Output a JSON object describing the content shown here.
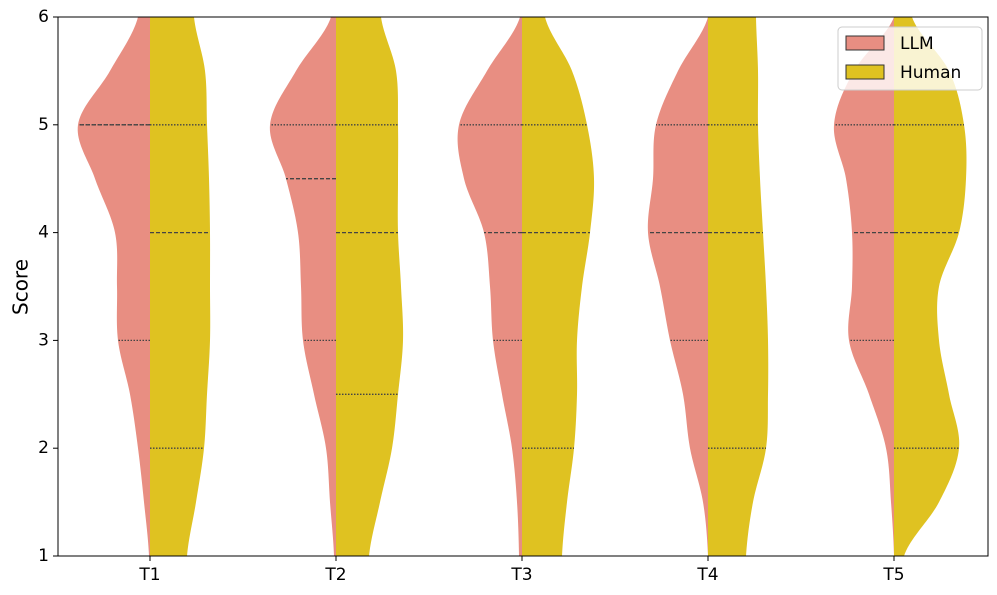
{
  "chart_data": {
    "type": "split-violin",
    "ylabel": "Score",
    "categories": [
      "T1",
      "T2",
      "T3",
      "T4",
      "T5"
    ],
    "ylim": [
      1,
      6
    ],
    "yticks": [
      1,
      2,
      3,
      4,
      5,
      6
    ],
    "legend": "upper right",
    "density_y": [
      1,
      1.5,
      2,
      2.5,
      3,
      3.5,
      4,
      4.5,
      5,
      5.5,
      6
    ],
    "series": [
      {
        "name": "LLM",
        "color": "#e88e82",
        "side": "left",
        "quartiles": [
          [
            3,
            5,
            5
          ],
          [
            3,
            4.5,
            5
          ],
          [
            3,
            4,
            5
          ],
          [
            3,
            4,
            5
          ],
          [
            3,
            4,
            5
          ]
        ],
        "density": [
          [
            1,
            6,
            12,
            20,
            32,
            33,
            35,
            55,
            72,
            40,
            12
          ],
          [
            2,
            6,
            10,
            22,
            33,
            35,
            38,
            50,
            66,
            40,
            5
          ],
          [
            3,
            5,
            10,
            20,
            29,
            32,
            38,
            58,
            63,
            35,
            2
          ],
          [
            0,
            5,
            18,
            25,
            38,
            48,
            60,
            55,
            52,
            30,
            0
          ],
          [
            0,
            3,
            8,
            25,
            45,
            42,
            42,
            48,
            60,
            40,
            0
          ]
        ]
      },
      {
        "name": "Human",
        "color": "#dfc221",
        "side": "right",
        "quartiles": [
          [
            2,
            4,
            5
          ],
          [
            2.5,
            4,
            5
          ],
          [
            2,
            4,
            5
          ],
          [
            2,
            4,
            5
          ],
          [
            2,
            4,
            5
          ]
        ],
        "density": [
          [
            37,
            46,
            54,
            57,
            60,
            60,
            60,
            59,
            57,
            55,
            44
          ],
          [
            33,
            44,
            56,
            62,
            67,
            65,
            62,
            62,
            62,
            60,
            45
          ],
          [
            40,
            45,
            52,
            55,
            55,
            60,
            68,
            72,
            65,
            50,
            23
          ],
          [
            38,
            45,
            58,
            60,
            60,
            58,
            55,
            52,
            50,
            50,
            48
          ],
          [
            10,
            45,
            65,
            55,
            45,
            45,
            65,
            72,
            70,
            55,
            18
          ]
        ]
      }
    ]
  }
}
